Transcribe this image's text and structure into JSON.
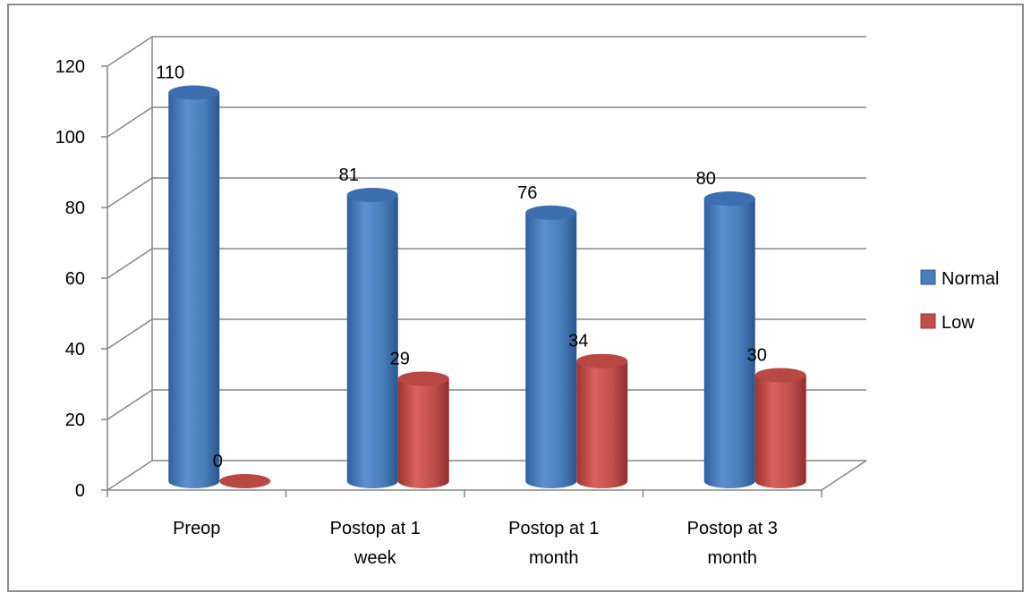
{
  "chart_data": {
    "type": "bar",
    "categories": [
      "Preop",
      "Postop at 1 week",
      "Postop at 1 month",
      "Postop at 3 month"
    ],
    "category_lines": [
      [
        "Preop"
      ],
      [
        "Postop at 1",
        "week"
      ],
      [
        "Postop at 1",
        "month"
      ],
      [
        "Postop at 3",
        "month"
      ]
    ],
    "series": [
      {
        "name": "Normal",
        "values": [
          110,
          81,
          76,
          80
        ],
        "color": "#4a7ebb"
      },
      {
        "name": "Low",
        "values": [
          0,
          29,
          34,
          30
        ],
        "color": "#c0504d"
      }
    ],
    "ylim": [
      0,
      120
    ],
    "yticks": [
      0,
      20,
      40,
      60,
      80,
      100,
      120
    ],
    "grid": true,
    "legend_position": "right",
    "bar_shape": "3d-cylinder",
    "title": "",
    "xlabel": "",
    "ylabel": ""
  }
}
